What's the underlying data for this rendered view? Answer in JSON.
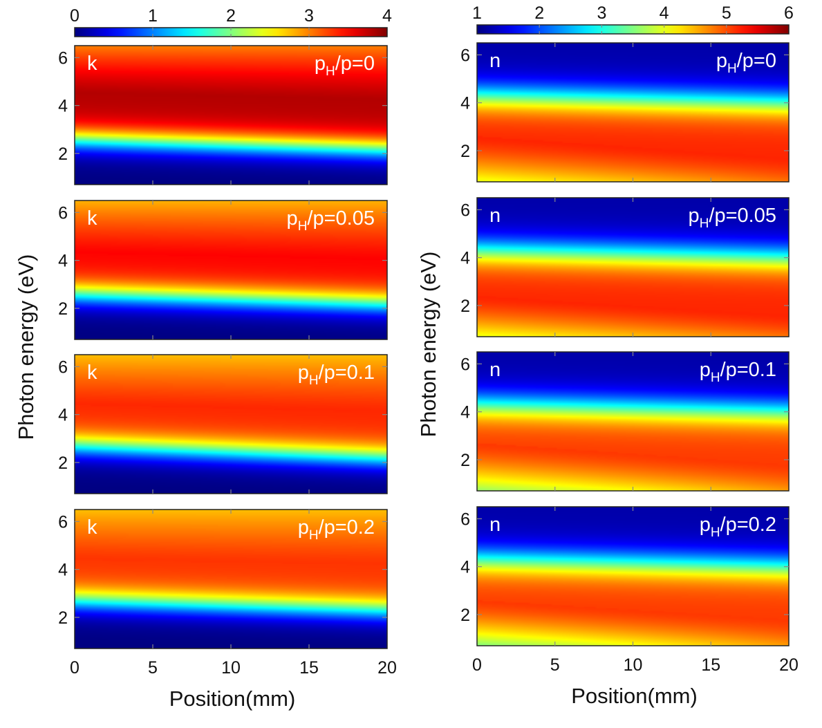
{
  "chart_data": {
    "type": "heatmap",
    "title": "",
    "layout": "4 rows x 2 columns of heatmaps, each column with its own horizontal colorbar on top",
    "x": {
      "label": "Position(mm)",
      "range": [
        0,
        20
      ],
      "ticks": [
        0,
        5,
        10,
        15,
        20
      ]
    },
    "y": {
      "label": "Photon energy (eV)",
      "range": [
        0.7,
        6.5
      ],
      "ticks": [
        2,
        4,
        6
      ]
    },
    "colormap": "jet",
    "colormap_stops": [
      "#00008f",
      "#0000ff",
      "#00ffff",
      "#ffff00",
      "#ff0000",
      "#800000"
    ],
    "columns": [
      {
        "quantity": "k",
        "colorbar": {
          "range": [
            0,
            4
          ],
          "ticks": [
            0,
            1,
            2,
            3,
            4
          ]
        },
        "panels": [
          {
            "label": "k",
            "condition_main": "p",
            "condition_sub": "H",
            "condition_rest": "/p=0",
            "ratio": 0,
            "features": {
              "peak_energy_eV_at_x0": 4.5,
              "peak_energy_eV_at_x20": 4.2,
              "peak_value": 3.8,
              "edge_energy_eV_at_x0": 2.6,
              "edge_energy_eV_at_x20": 2.2,
              "low_value": 0.0,
              "top_value": 3.0
            }
          },
          {
            "label": "k",
            "condition_main": "p",
            "condition_sub": "H",
            "condition_rest": "/p=0.05",
            "ratio": 0.05,
            "features": {
              "peak_energy_eV_at_x0": 4.3,
              "peak_energy_eV_at_x20": 4.0,
              "peak_value": 3.5,
              "edge_energy_eV_at_x0": 2.6,
              "edge_energy_eV_at_x20": 2.2,
              "low_value": 0.0,
              "top_value": 2.8
            }
          },
          {
            "label": "k",
            "condition_main": "p",
            "condition_sub": "H",
            "condition_rest": "/p=0.1",
            "ratio": 0.1,
            "features": {
              "peak_energy_eV_at_x0": 4.4,
              "peak_energy_eV_at_x20": 4.1,
              "peak_value": 3.35,
              "edge_energy_eV_at_x0": 2.7,
              "edge_energy_eV_at_x20": 2.2,
              "low_value": 0.0,
              "top_value": 2.75
            }
          },
          {
            "label": "k",
            "condition_main": "p",
            "condition_sub": "H",
            "condition_rest": "/p=0.2",
            "ratio": 0.2,
            "features": {
              "peak_energy_eV_at_x0": 4.4,
              "peak_energy_eV_at_x20": 4.2,
              "peak_value": 3.3,
              "edge_energy_eV_at_x0": 2.7,
              "edge_energy_eV_at_x20": 2.3,
              "low_value": 0.0,
              "top_value": 2.75
            }
          }
        ]
      },
      {
        "quantity": "n",
        "colorbar": {
          "range": [
            1,
            6
          ],
          "ticks": [
            1,
            2,
            3,
            4,
            5,
            6
          ]
        },
        "panels": [
          {
            "label": "n",
            "condition_main": "p",
            "condition_sub": "H",
            "condition_rest": "/p=0",
            "ratio": 0,
            "features": {
              "peak_energy_eV_at_x0": 2.6,
              "peak_energy_eV_at_x20": 1.7,
              "peak_value": 5.2,
              "edge_energy_eV_at_x0": 4.3,
              "edge_energy_eV_at_x20": 4.0,
              "high_value": 1.2,
              "bottom_value_x0": 4.0,
              "bottom_value_x20": 4.8
            }
          },
          {
            "label": "n",
            "condition_main": "p",
            "condition_sub": "H",
            "condition_rest": "/p=0.05",
            "ratio": 0.05,
            "features": {
              "peak_energy_eV_at_x0": 2.4,
              "peak_energy_eV_at_x20": 1.6,
              "peak_value": 5.2,
              "edge_energy_eV_at_x0": 4.3,
              "edge_energy_eV_at_x20": 4.0,
              "high_value": 1.2,
              "bottom_value_x0": 4.0,
              "bottom_value_x20": 4.8
            }
          },
          {
            "label": "n",
            "condition_main": "p",
            "condition_sub": "H",
            "condition_rest": "/p=0.1",
            "ratio": 0.1,
            "features": {
              "peak_energy_eV_at_x0": 2.7,
              "peak_energy_eV_at_x20": 1.8,
              "peak_value": 5.1,
              "edge_energy_eV_at_x0": 4.3,
              "edge_energy_eV_at_x20": 4.0,
              "high_value": 1.2,
              "bottom_value_x0": 3.6,
              "bottom_value_x20": 4.6
            }
          },
          {
            "label": "n",
            "condition_main": "p",
            "condition_sub": "H",
            "condition_rest": "/p=0.2",
            "ratio": 0.2,
            "features": {
              "peak_energy_eV_at_x0": 2.6,
              "peak_energy_eV_at_x20": 1.8,
              "peak_value": 5.1,
              "edge_energy_eV_at_x0": 4.3,
              "edge_energy_eV_at_x20": 4.0,
              "high_value": 1.2,
              "bottom_value_x0": 3.5,
              "bottom_value_x20": 4.6
            }
          }
        ]
      }
    ]
  }
}
